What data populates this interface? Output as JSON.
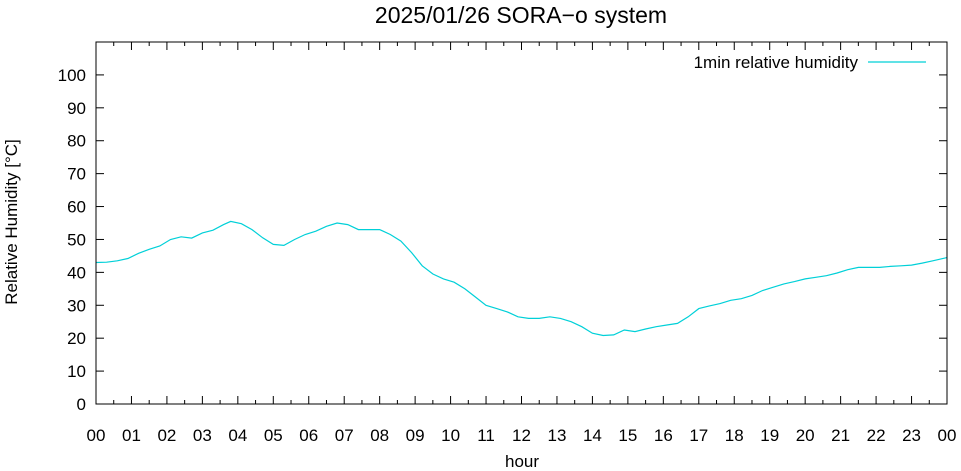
{
  "chart_data": {
    "type": "line",
    "title": "2025/01/26 SORA−o system",
    "xlabel": "hour",
    "ylabel": "Relative Humidity [°C]",
    "xlim": [
      0,
      24
    ],
    "ylim": [
      0,
      110
    ],
    "x_ticks": [
      0,
      1,
      2,
      3,
      4,
      5,
      6,
      7,
      8,
      9,
      10,
      11,
      12,
      13,
      14,
      15,
      16,
      17,
      18,
      19,
      20,
      21,
      22,
      23,
      24
    ],
    "x_tick_labels": [
      "00",
      "01",
      "02",
      "03",
      "04",
      "05",
      "06",
      "07",
      "08",
      "09",
      "10",
      "11",
      "12",
      "13",
      "14",
      "15",
      "16",
      "17",
      "18",
      "19",
      "20",
      "21",
      "22",
      "23",
      "00"
    ],
    "y_ticks": [
      0,
      10,
      20,
      30,
      40,
      50,
      60,
      70,
      80,
      90,
      100
    ],
    "y_tick_labels": [
      "0",
      "10",
      "20",
      "30",
      "40",
      "50",
      "60",
      "70",
      "80",
      "90",
      "100"
    ],
    "grid": false,
    "legend": "top-right",
    "series": [
      {
        "name": "1min relative humidity",
        "color": "#00d0d8",
        "x": [
          0,
          0.3,
          0.6,
          0.9,
          1.2,
          1.5,
          1.8,
          2.1,
          2.4,
          2.7,
          3.0,
          3.3,
          3.6,
          3.8,
          4.1,
          4.4,
          4.7,
          5.0,
          5.3,
          5.6,
          5.9,
          6.2,
          6.5,
          6.8,
          7.1,
          7.4,
          7.7,
          8.0,
          8.3,
          8.6,
          8.9,
          9.2,
          9.5,
          9.8,
          10.1,
          10.4,
          10.7,
          11.0,
          11.3,
          11.6,
          11.9,
          12.2,
          12.5,
          12.8,
          13.1,
          13.4,
          13.7,
          14.0,
          14.3,
          14.6,
          14.9,
          15.2,
          15.5,
          15.8,
          16.1,
          16.4,
          16.7,
          17.0,
          17.3,
          17.6,
          17.9,
          18.2,
          18.5,
          18.8,
          19.1,
          19.4,
          19.7,
          20.0,
          20.3,
          20.6,
          20.9,
          21.2,
          21.5,
          21.8,
          22.1,
          22.4,
          22.7,
          23.0,
          23.3,
          23.6,
          24.0
        ],
        "y": [
          43,
          43.1,
          43.5,
          44.2,
          45.8,
          47,
          48,
          50,
          50.8,
          50.4,
          52,
          52.8,
          54.5,
          55.5,
          54.8,
          53,
          50.5,
          48.5,
          48.2,
          50,
          51.5,
          52.5,
          54,
          55,
          54.5,
          53,
          53,
          53,
          51.5,
          49.5,
          46,
          42,
          39.5,
          38,
          37,
          35,
          32.5,
          30,
          29,
          28,
          26.5,
          26,
          26,
          26.5,
          26,
          25,
          23.5,
          21.5,
          20.8,
          21,
          22.5,
          22,
          22.8,
          23.5,
          24,
          24.5,
          26.5,
          29,
          29.8,
          30.5,
          31.5,
          32,
          33,
          34.5,
          35.5,
          36.5,
          37.2,
          38,
          38.5,
          39,
          39.8,
          40.8,
          41.5,
          41.5,
          41.5,
          41.8,
          42,
          42.2,
          42.8,
          43.5,
          44.5
        ]
      }
    ]
  }
}
